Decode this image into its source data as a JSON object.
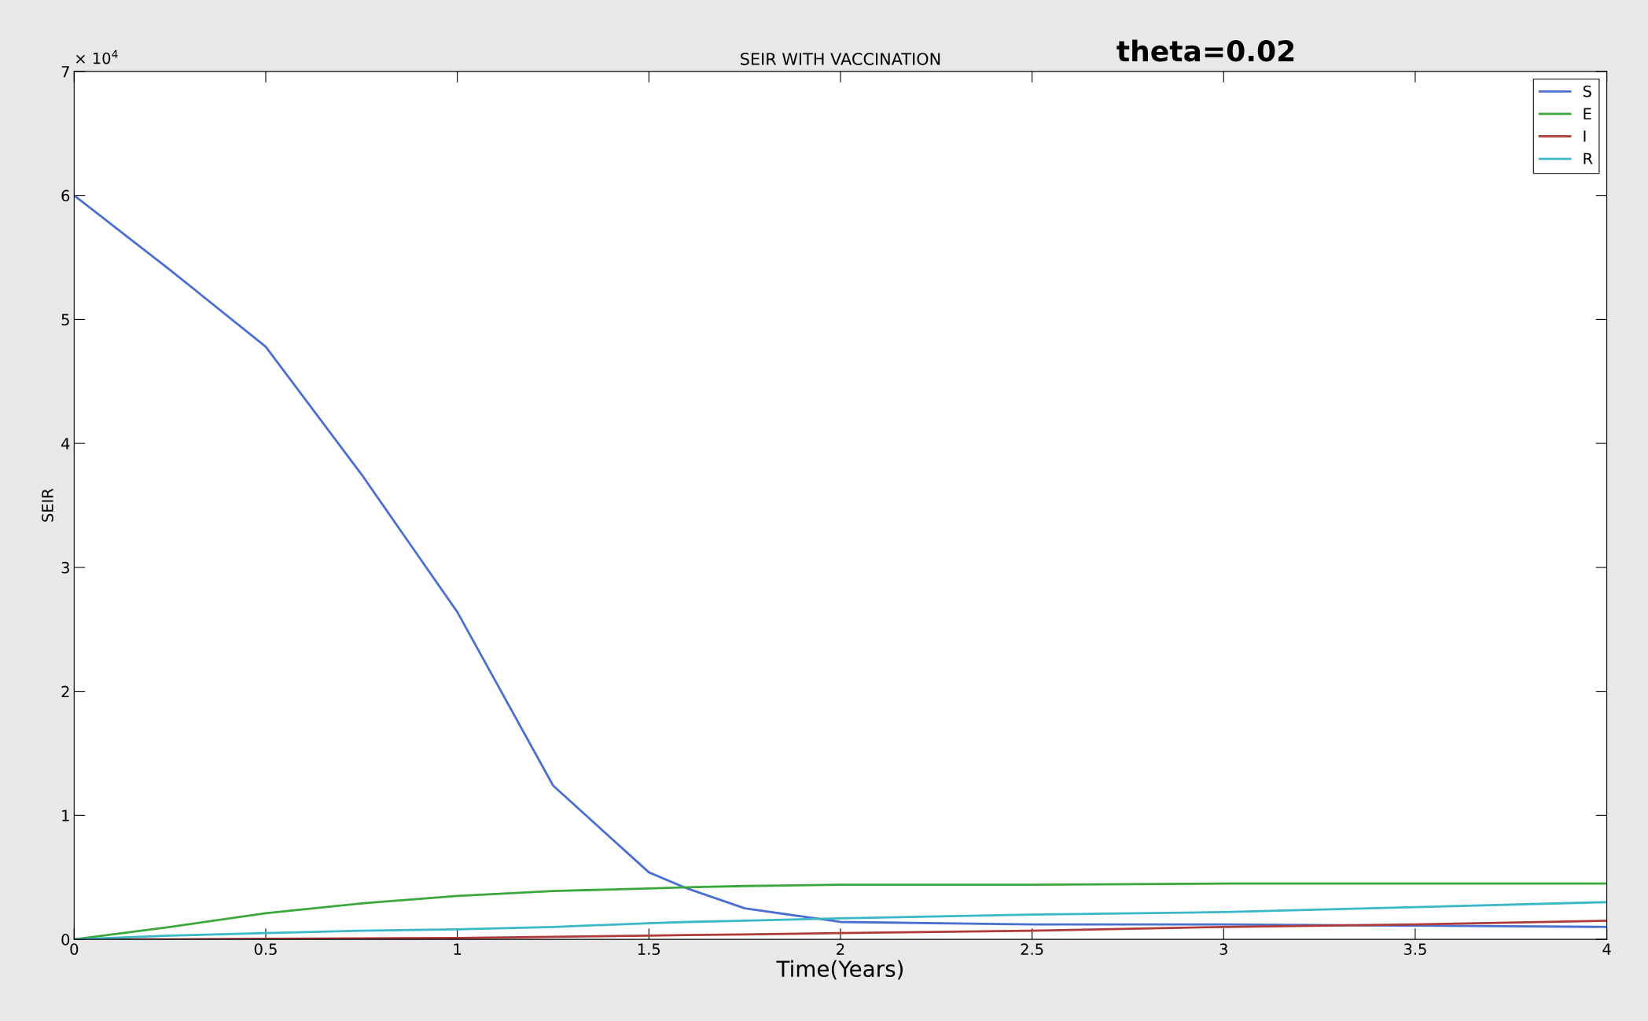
{
  "chart_data": {
    "type": "line",
    "title": "SEIR WITH VACCINATION",
    "xlabel": "Time(Years)",
    "ylabel": "SEIR",
    "annotations": [
      "theta=0.02",
      "× 10$^{4}$"
    ],
    "x": [
      0,
      0.25,
      0.5,
      0.75,
      1,
      1.25,
      1.5,
      1.6,
      1.75,
      2,
      2.5,
      3,
      3.5,
      4
    ],
    "series": [
      {
        "name": "S",
        "color": "#4a6fd0",
        "values": [
          6.0,
          5.4,
          4.78,
          3.75,
          2.64,
          1.24,
          0.54,
          0.41,
          0.25,
          0.14,
          0.12,
          0.12,
          0.11,
          0.1
        ]
      },
      {
        "name": "E",
        "color": "#3aa83a",
        "values": [
          0,
          0.1,
          0.21,
          0.29,
          0.35,
          0.39,
          0.41,
          0.42,
          0.43,
          0.44,
          0.44,
          0.45,
          0.45,
          0.45
        ]
      },
      {
        "name": "I",
        "color": "#b03a3a",
        "values": [
          0,
          0,
          0.005,
          0.008,
          0.01,
          0.02,
          0.03,
          0.035,
          0.04,
          0.05,
          0.07,
          0.1,
          0.12,
          0.15
        ]
      },
      {
        "name": "R",
        "color": "#3ab8c8",
        "values": [
          0,
          0.03,
          0.05,
          0.07,
          0.08,
          0.1,
          0.13,
          0.14,
          0.15,
          0.17,
          0.2,
          0.22,
          0.26,
          0.3
        ]
      }
    ],
    "xlim": [
      0,
      4
    ],
    "ylim": [
      0,
      7
    ],
    "xticks": [
      0,
      0.5,
      1,
      1.5,
      2,
      2.5,
      3,
      3.5,
      4
    ],
    "yticks": [
      0,
      1,
      2,
      3,
      4,
      5,
      6,
      7
    ],
    "grid": false,
    "legend": "top right"
  }
}
